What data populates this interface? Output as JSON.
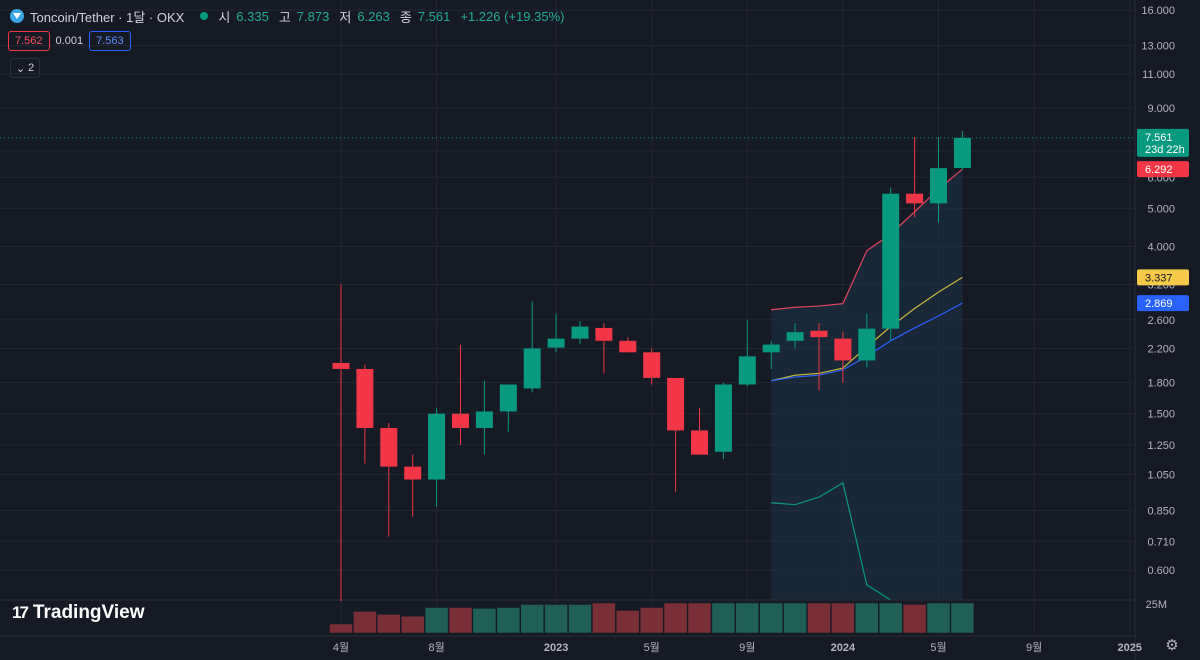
{
  "header": {
    "symbol_title": "Toncoin/Tether · 1달 · OKX",
    "ohlc": [
      {
        "label": "시",
        "value": "6.335"
      },
      {
        "label": "고",
        "value": "7.873"
      },
      {
        "label": "저",
        "value": "6.263"
      },
      {
        "label": "종",
        "value": "7.561"
      }
    ],
    "change": "+1.226 (+19.35%)",
    "sell_price": "7.562",
    "spread": "0.001",
    "buy_price": "7.563",
    "indicators_count": "2"
  },
  "brand": "TradingView",
  "colors": {
    "up": "#089981",
    "down": "#f23645",
    "ma_fast": "#c9b93a",
    "ma_slow": "#2962ff",
    "band": "#e0455f",
    "band_lower": "#089981"
  },
  "chart_data": {
    "type": "candlestick",
    "y_scale": "log",
    "x_ticks": [
      "4월",
      "8월",
      "2023",
      "5월",
      "9월",
      "2024",
      "5월",
      "9월",
      "2025"
    ],
    "y_ticks": [
      "16.000",
      "13.000",
      "11.000",
      "9.000",
      "7.000",
      "6.000",
      "5.000",
      "4.000",
      "3.200",
      "2.600",
      "2.200",
      "1.800",
      "1.500",
      "1.250",
      "1.050",
      "0.850",
      "0.710",
      "0.600"
    ],
    "volume_label": "25M",
    "price_tags": [
      {
        "label": "7.561",
        "sub": "23d 22h",
        "value": 7.561,
        "color": "#089981"
      },
      {
        "label": "6.292",
        "value": 6.292,
        "color": "#f23645"
      },
      {
        "label": "3.337",
        "value": 3.337,
        "color": "#f7c948"
      },
      {
        "label": "2.869",
        "value": 2.869,
        "color": "#2962ff"
      }
    ],
    "candles": [
      {
        "o": 2.02,
        "h": 3.2,
        "l": 0.5,
        "c": 1.95
      },
      {
        "o": 1.95,
        "h": 2.0,
        "l": 1.12,
        "c": 1.38
      },
      {
        "o": 1.38,
        "h": 1.42,
        "l": 0.73,
        "c": 1.1
      },
      {
        "o": 1.1,
        "h": 1.18,
        "l": 0.82,
        "c": 1.02
      },
      {
        "o": 1.02,
        "h": 1.55,
        "l": 0.87,
        "c": 1.5
      },
      {
        "o": 1.5,
        "h": 2.25,
        "l": 1.25,
        "c": 1.38
      },
      {
        "o": 1.38,
        "h": 1.82,
        "l": 1.18,
        "c": 1.52
      },
      {
        "o": 1.52,
        "h": 1.78,
        "l": 1.35,
        "c": 1.78
      },
      {
        "o": 1.74,
        "h": 2.9,
        "l": 1.7,
        "c": 2.2
      },
      {
        "o": 2.21,
        "h": 2.7,
        "l": 2.15,
        "c": 2.33
      },
      {
        "o": 2.33,
        "h": 2.58,
        "l": 2.26,
        "c": 2.5
      },
      {
        "o": 2.48,
        "h": 2.55,
        "l": 1.9,
        "c": 2.3
      },
      {
        "o": 2.3,
        "h": 2.35,
        "l": 2.15,
        "c": 2.15
      },
      {
        "o": 2.15,
        "h": 2.2,
        "l": 1.78,
        "c": 1.85
      },
      {
        "o": 1.85,
        "h": 1.85,
        "l": 0.95,
        "c": 1.36
      },
      {
        "o": 1.36,
        "h": 1.55,
        "l": 1.18,
        "c": 1.18
      },
      {
        "o": 1.2,
        "h": 1.8,
        "l": 1.15,
        "c": 1.78
      },
      {
        "o": 1.78,
        "h": 2.6,
        "l": 1.76,
        "c": 2.1
      },
      {
        "o": 2.15,
        "h": 2.3,
        "l": 1.95,
        "c": 2.25
      },
      {
        "o": 2.3,
        "h": 2.55,
        "l": 2.2,
        "c": 2.42
      },
      {
        "o": 2.44,
        "h": 2.55,
        "l": 1.72,
        "c": 2.35
      },
      {
        "o": 2.33,
        "h": 2.43,
        "l": 1.8,
        "c": 2.05
      },
      {
        "o": 2.05,
        "h": 2.7,
        "l": 1.97,
        "c": 2.47
      },
      {
        "o": 2.47,
        "h": 5.65,
        "l": 2.3,
        "c": 5.45
      },
      {
        "o": 5.45,
        "h": 7.6,
        "l": 4.75,
        "c": 5.15
      },
      {
        "o": 5.15,
        "h": 7.6,
        "l": 4.6,
        "c": 6.33
      },
      {
        "o": 6.335,
        "h": 7.873,
        "l": 6.263,
        "c": 7.561
      }
    ],
    "volumes": [
      0.3,
      0.72,
      0.62,
      0.56,
      0.85,
      0.85,
      0.82,
      0.85,
      0.95,
      0.95,
      0.95,
      1.0,
      0.75,
      0.85,
      1.0,
      1.0,
      1.0,
      1.0,
      1.0,
      1.0,
      1.0,
      1.0,
      1.0,
      1.0,
      0.95,
      1.0,
      1.0
    ],
    "ma_fast": [
      null,
      null,
      null,
      null,
      null,
      null,
      null,
      null,
      null,
      null,
      null,
      null,
      null,
      null,
      null,
      null,
      null,
      null,
      1.82,
      1.88,
      1.9,
      1.96,
      2.22,
      2.5,
      2.78,
      3.06,
      3.337
    ],
    "ma_slow": [
      null,
      null,
      null,
      null,
      null,
      null,
      null,
      null,
      null,
      null,
      null,
      null,
      null,
      null,
      null,
      null,
      null,
      null,
      1.82,
      1.86,
      1.88,
      1.94,
      2.1,
      2.3,
      2.48,
      2.66,
      2.869
    ],
    "band_upper": [
      null,
      null,
      null,
      null,
      null,
      null,
      null,
      null,
      null,
      null,
      null,
      null,
      null,
      null,
      null,
      null,
      null,
      null,
      2.76,
      2.8,
      2.82,
      2.86,
      3.9,
      4.3,
      4.9,
      5.6,
      6.292
    ],
    "band_lower": [
      null,
      null,
      null,
      null,
      null,
      null,
      null,
      null,
      null,
      null,
      null,
      null,
      null,
      null,
      null,
      null,
      null,
      null,
      0.89,
      0.88,
      0.92,
      1.0,
      0.55,
      null,
      null,
      null,
      null
    ]
  }
}
